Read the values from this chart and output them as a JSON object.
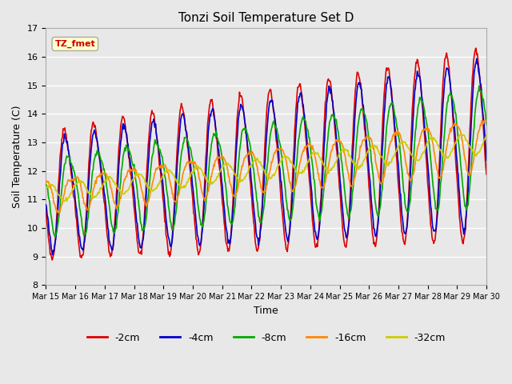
{
  "title": "Tonzi Soil Temperature Set D",
  "xlabel": "Time",
  "ylabel": "Soil Temperature (C)",
  "ylim": [
    8.0,
    17.0
  ],
  "yticks": [
    8.0,
    9.0,
    10.0,
    11.0,
    12.0,
    13.0,
    14.0,
    15.0,
    16.0,
    17.0
  ],
  "plot_bg_color": "#e8e8e8",
  "grid_color": "#ffffff",
  "label_box_text": "TZ_fmet",
  "label_box_facecolor": "#ffffcc",
  "label_box_edgecolor": "#aaaaaa",
  "label_box_textcolor": "#cc0000",
  "series": [
    {
      "label": "-2cm",
      "color": "#dd0000",
      "lw": 1.2
    },
    {
      "label": "-4cm",
      "color": "#0000cc",
      "lw": 1.2
    },
    {
      "label": "-8cm",
      "color": "#00aa00",
      "lw": 1.2
    },
    {
      "label": "-16cm",
      "color": "#ff8800",
      "lw": 1.2
    },
    {
      "label": "-32cm",
      "color": "#cccc00",
      "lw": 1.2
    }
  ],
  "xtick_labels": [
    "Mar 15",
    "Mar 16",
    "Mar 17",
    "Mar 18",
    "Mar 19",
    "Mar 20",
    "Mar 21",
    "Mar 22",
    "Mar 23",
    "Mar 24",
    "Mar 25",
    "Mar 26",
    "Mar 27",
    "Mar 28",
    "Mar 29",
    "Mar 30"
  ]
}
